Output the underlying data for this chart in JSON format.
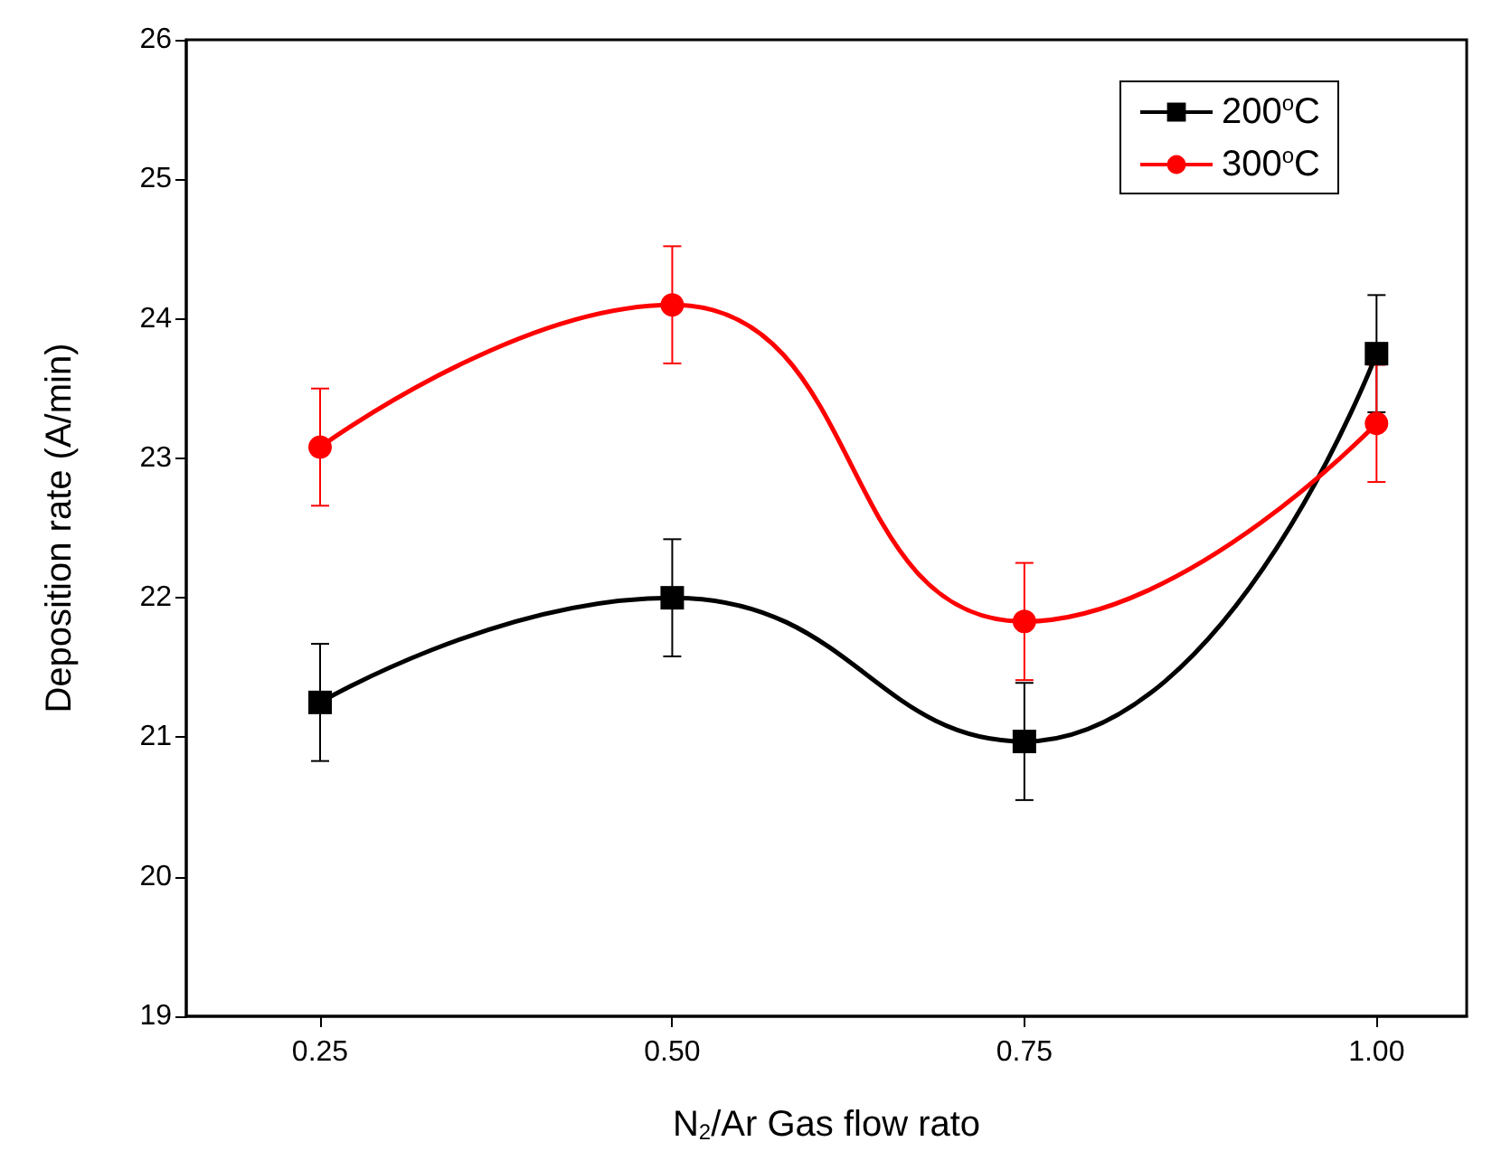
{
  "chart_data": {
    "type": "line",
    "xlabel": "N$_{2}$/Ar Gas flow rato",
    "ylabel": "Deposition rate (A/min)",
    "x": [
      0.25,
      0.5,
      0.75,
      1.0
    ],
    "series": [
      {
        "name": "200$^{o}$C",
        "color": "#000000",
        "marker": "square",
        "values": [
          21.25,
          22.0,
          20.97,
          23.75
        ],
        "errors": [
          0.42,
          0.42,
          0.42,
          0.42
        ]
      },
      {
        "name": "300$^{o}$C",
        "color": "#ff0000",
        "marker": "circle",
        "values": [
          23.08,
          24.1,
          21.83,
          23.25
        ],
        "errors": [
          0.42,
          0.42,
          0.42,
          0.42
        ]
      }
    ],
    "xlim": [
      0.155,
      1.064
    ],
    "xticks": [
      {
        "value": 0.25,
        "label": "0.25"
      },
      {
        "value": 0.5,
        "label": "0.50"
      },
      {
        "value": 0.75,
        "label": "0.75"
      },
      {
        "value": 1.0,
        "label": "1.00"
      }
    ],
    "ylim": [
      19,
      26
    ],
    "yticks": [
      19,
      20,
      21,
      22,
      23,
      24,
      25,
      26
    ],
    "legend": "top right",
    "grid": false
  }
}
